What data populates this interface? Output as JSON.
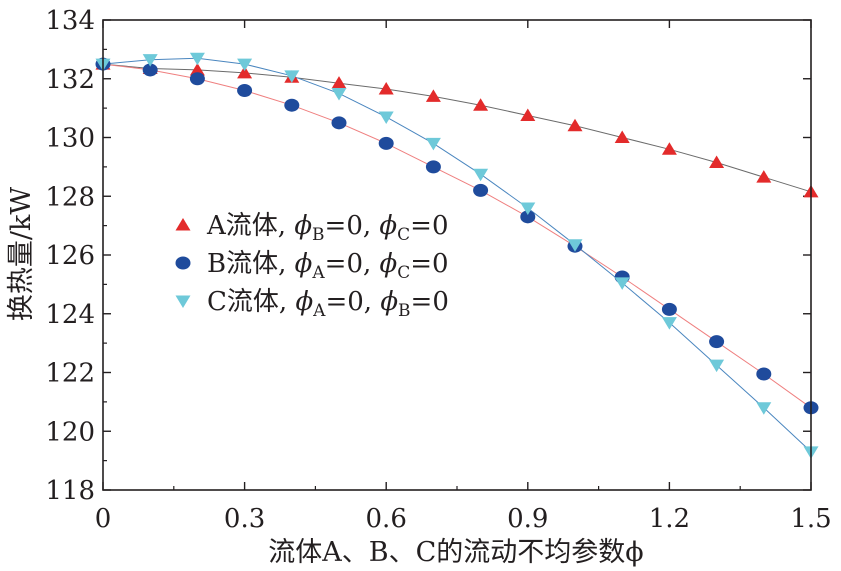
{
  "chart_data": {
    "type": "scatter",
    "xlabel": "流体A、B、C的流动不均参数ϕ",
    "ylabel": "换热量/kW",
    "xlim": [
      0,
      1.5
    ],
    "ylim": [
      118,
      134
    ],
    "xticks": [
      "0",
      "0.3",
      "0.6",
      "0.9",
      "1.2",
      "1.5"
    ],
    "yticks": [
      "118",
      "120",
      "122",
      "124",
      "126",
      "128",
      "130",
      "132",
      "134"
    ],
    "x": [
      0,
      0.1,
      0.2,
      0.3,
      0.4,
      0.5,
      0.6,
      0.7,
      0.8,
      0.9,
      1.0,
      1.1,
      1.2,
      1.3,
      1.4,
      1.5
    ],
    "legend_position": "center-left",
    "series": [
      {
        "name": "A流体, ϕB=0, ϕC=0",
        "legend": {
          "prefix": "A流体, ",
          "s1": "ϕ",
          "sub1": "B",
          "mid": "=0, ",
          "s2": "ϕ",
          "sub2": "C",
          "suffix": "=0"
        },
        "marker": "triangle-up",
        "color": "#e32b2b",
        "line_color": "#6b6b6b",
        "values": [
          132.5,
          132.35,
          132.3,
          132.2,
          132.05,
          131.85,
          131.65,
          131.4,
          131.1,
          130.75,
          130.4,
          130.0,
          129.6,
          129.15,
          128.65,
          128.15
        ]
      },
      {
        "name": "B流体, ϕA=0, ϕC=0",
        "legend": {
          "prefix": "B流体, ",
          "s1": "ϕ",
          "sub1": "A",
          "mid": "=0, ",
          "s2": "ϕ",
          "sub2": "C",
          "suffix": "=0"
        },
        "marker": "circle",
        "color": "#1f4b9c",
        "line_color": "#ef7f7f",
        "values": [
          132.5,
          132.3,
          132.0,
          131.6,
          131.1,
          130.5,
          129.8,
          129.0,
          128.2,
          127.3,
          126.3,
          125.25,
          124.15,
          123.05,
          121.95,
          120.8
        ]
      },
      {
        "name": "C流体, ϕA=0, ϕB=0",
        "legend": {
          "prefix": "C流体, ",
          "s1": "ϕ",
          "sub1": "A",
          "mid": "=0, ",
          "s2": "ϕ",
          "sub2": "B",
          "suffix": "=0"
        },
        "marker": "triangle-down",
        "color": "#6ec9d9",
        "line_color": "#4a86bf",
        "values": [
          132.5,
          132.65,
          132.7,
          132.5,
          132.1,
          131.5,
          130.7,
          129.8,
          128.75,
          127.6,
          126.35,
          125.05,
          123.7,
          122.25,
          120.8,
          119.3
        ]
      }
    ]
  }
}
